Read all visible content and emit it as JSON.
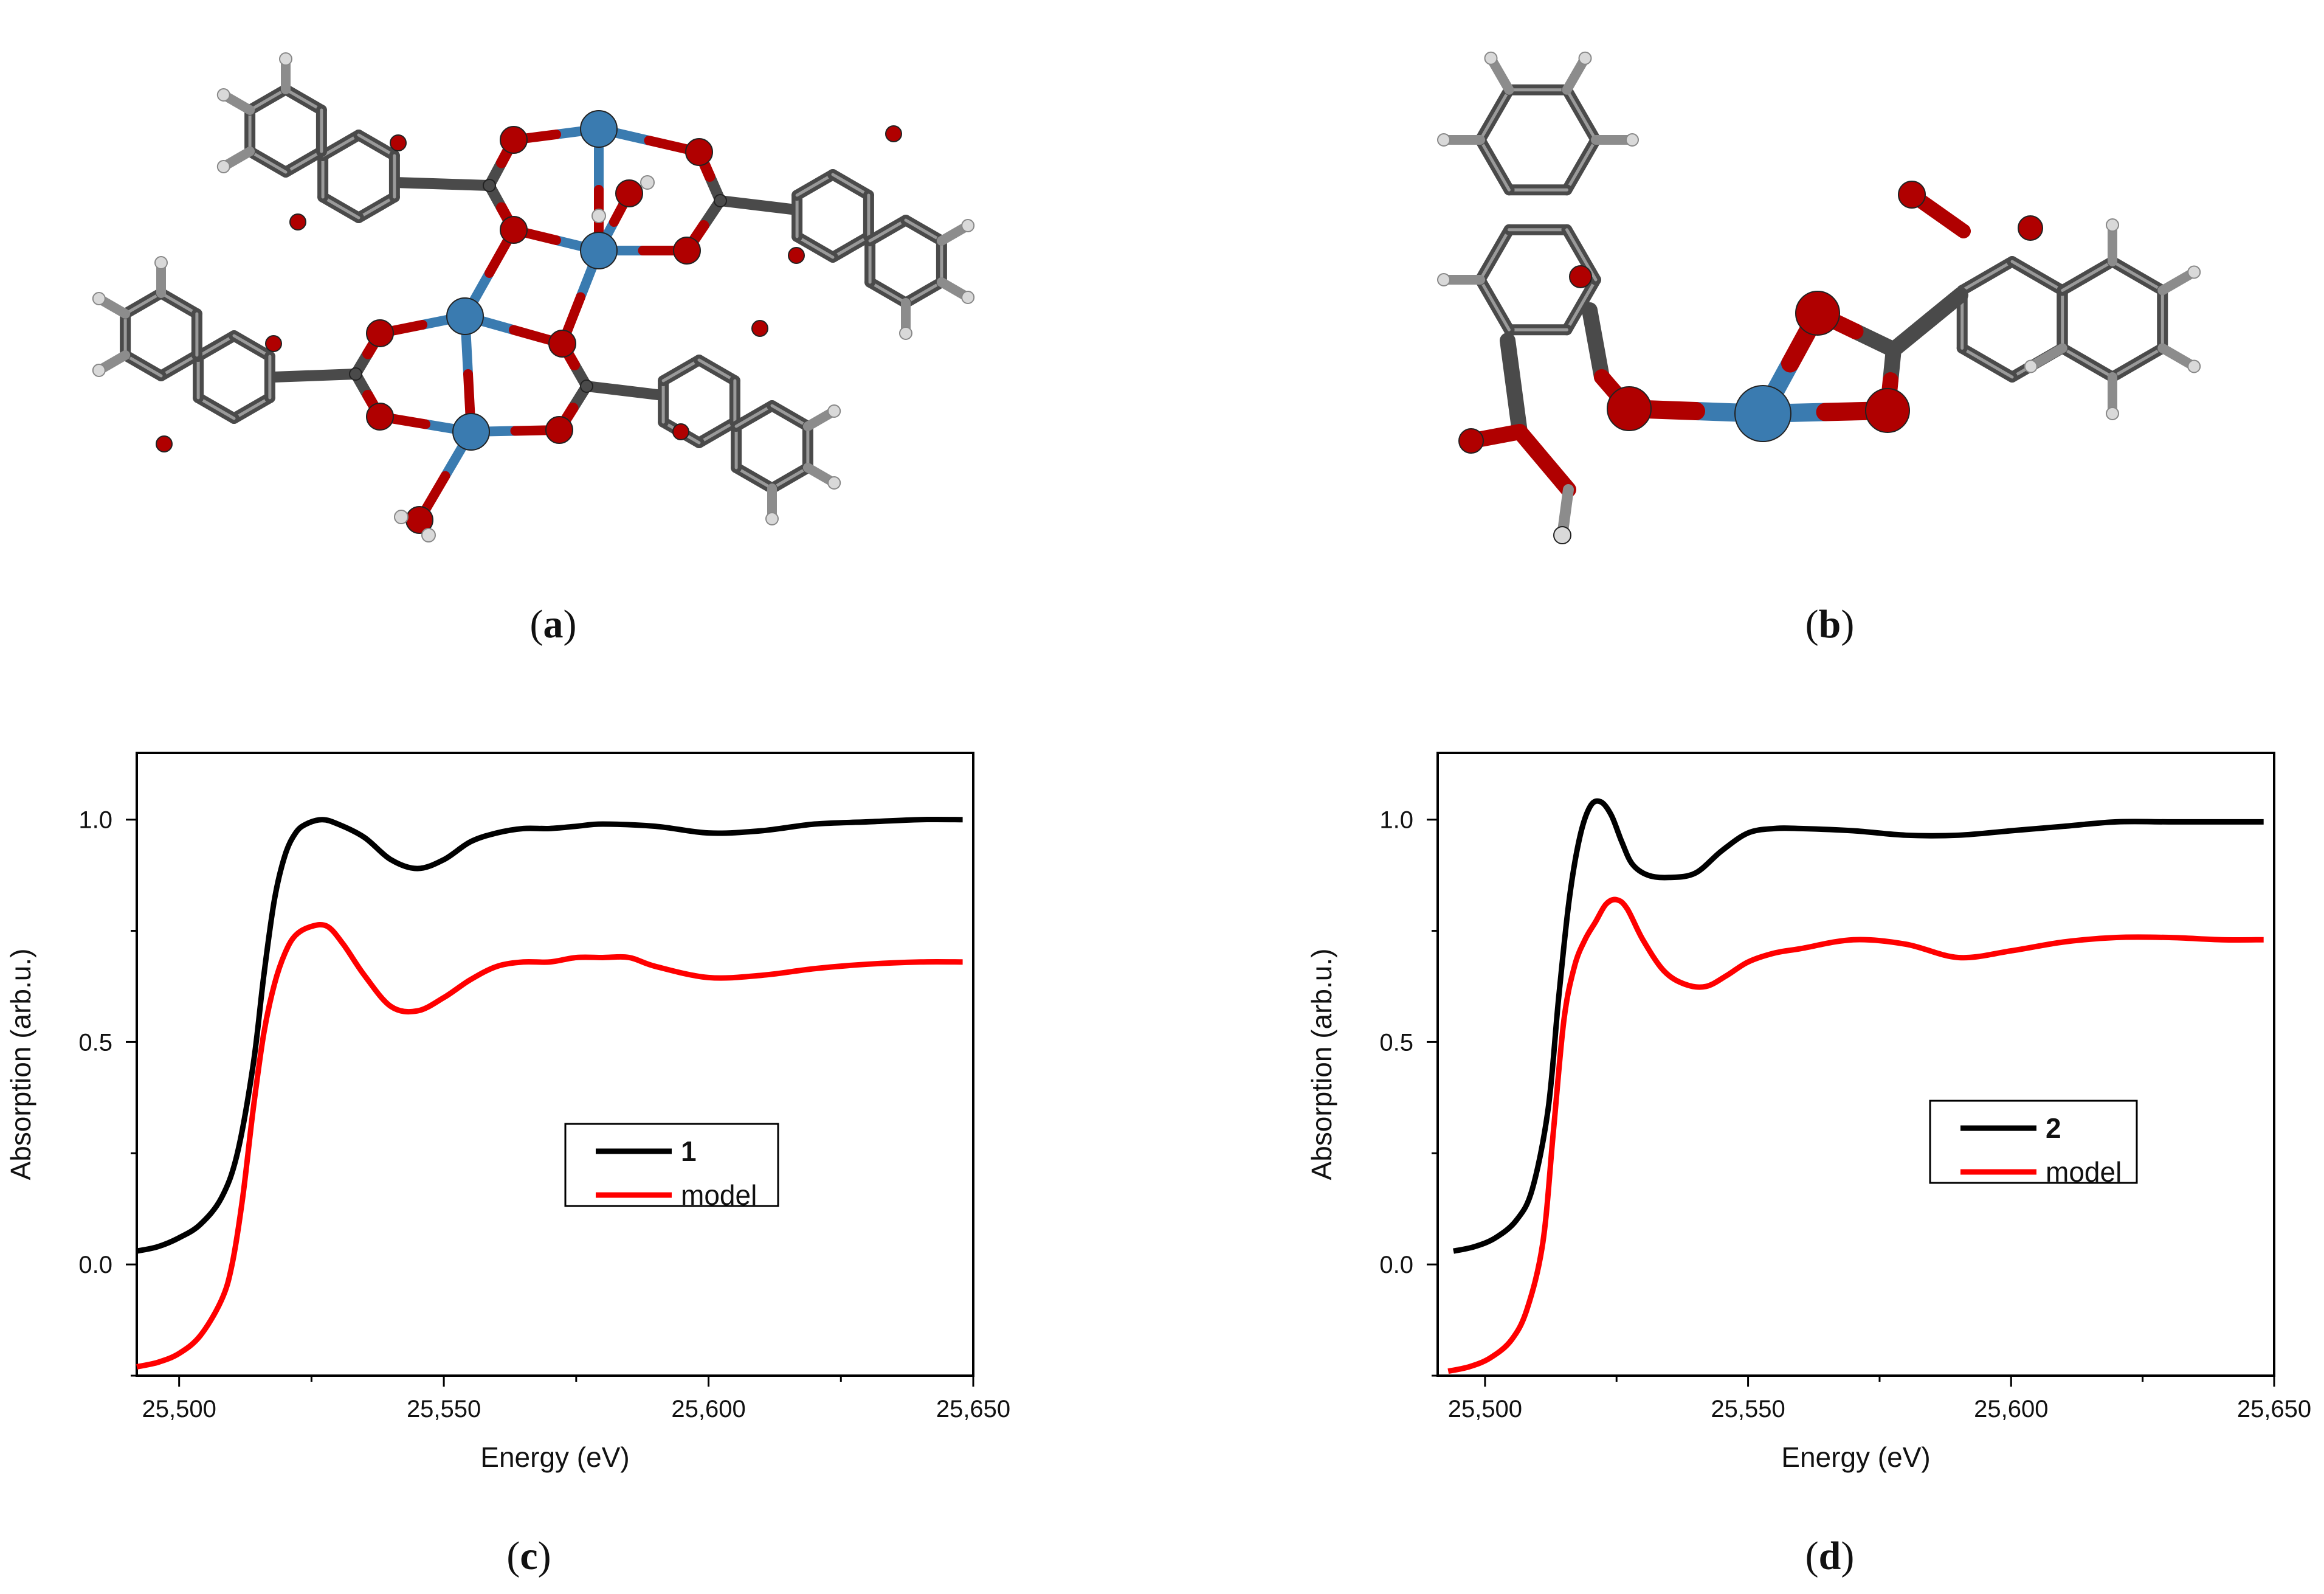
{
  "panel_labels": {
    "a": {
      "open": "(",
      "letter": "a",
      "close": ")"
    },
    "b": {
      "open": "(",
      "letter": "b",
      "close": ")"
    },
    "c": {
      "open": "(",
      "letter": "c",
      "close": ")"
    },
    "d": {
      "open": "(",
      "letter": "d",
      "close": ")"
    }
  },
  "molecule_a": {
    "description_icon": "ball-and-stick-tetranuclear-complex",
    "atom_colors": {
      "carbon": "#4a4a4a",
      "oxygen": "#b00000",
      "metal": "#3a7bb0",
      "hydrogen": "#d9d9d9"
    }
  },
  "molecule_b": {
    "description_icon": "ball-and-stick-mononuclear-fragment"
  },
  "chart_data": [
    {
      "type": "line",
      "panel": "c",
      "xlabel": "Energy (eV)",
      "ylabel": "Absorption (arb.u.)",
      "xlim": [
        25492,
        25650
      ],
      "ylim": [
        -0.25,
        1.15
      ],
      "xticks": [
        25500,
        25550,
        25600,
        25650
      ],
      "xtick_labels": [
        "25,500",
        "25,550",
        "25,600",
        "25,650"
      ],
      "yticks": [
        0.0,
        0.5,
        1.0
      ],
      "ytick_labels": [
        "0.0",
        "0.5",
        "1.0"
      ],
      "legend": {
        "placement": "center-right",
        "entries": [
          "1",
          "model"
        ]
      },
      "series": [
        {
          "name": "1",
          "color": "#000000",
          "x": [
            25492,
            25496,
            25500,
            25504,
            25508,
            25511,
            25514,
            25516,
            25518,
            25520,
            25522,
            25524,
            25527,
            25530,
            25535,
            25540,
            25545,
            25550,
            25555,
            25560,
            25565,
            25570,
            25575,
            25580,
            25590,
            25600,
            25610,
            25620,
            25630,
            25640,
            25648
          ],
          "y": [
            0.03,
            0.04,
            0.06,
            0.09,
            0.15,
            0.25,
            0.45,
            0.65,
            0.82,
            0.92,
            0.97,
            0.99,
            1.0,
            0.99,
            0.96,
            0.91,
            0.89,
            0.91,
            0.95,
            0.97,
            0.98,
            0.98,
            0.985,
            0.99,
            0.985,
            0.97,
            0.975,
            0.99,
            0.995,
            1.0,
            1.0
          ]
        },
        {
          "name": "model",
          "color": "#ff0000",
          "x": [
            25492,
            25496,
            25500,
            25504,
            25508,
            25510,
            25512,
            25514,
            25516,
            25518,
            25520,
            25522,
            25525,
            25528,
            25531,
            25535,
            25540,
            25545,
            25550,
            25555,
            25560,
            25565,
            25570,
            25575,
            25580,
            25585,
            25590,
            25600,
            25610,
            25620,
            25630,
            25640,
            25648
          ],
          "y": [
            -0.23,
            -0.22,
            -0.2,
            -0.16,
            -0.08,
            0.0,
            0.15,
            0.35,
            0.52,
            0.63,
            0.7,
            0.74,
            0.76,
            0.76,
            0.72,
            0.65,
            0.58,
            0.57,
            0.6,
            0.64,
            0.67,
            0.68,
            0.68,
            0.69,
            0.69,
            0.69,
            0.67,
            0.645,
            0.65,
            0.665,
            0.675,
            0.68,
            0.68
          ]
        }
      ]
    },
    {
      "type": "line",
      "panel": "d",
      "xlabel": "Energy (eV)",
      "ylabel": "Absorption (arb.u.)",
      "xlim": [
        25491,
        25650
      ],
      "ylim": [
        -0.25,
        1.15
      ],
      "xticks": [
        25500,
        25550,
        25600,
        25650
      ],
      "xtick_labels": [
        "25,500",
        "25,550",
        "25,600",
        "25,650"
      ],
      "yticks": [
        0.0,
        0.5,
        1.0
      ],
      "ytick_labels": [
        "0.0",
        "0.5",
        "1.0"
      ],
      "legend": {
        "placement": "center-right",
        "entries": [
          "2",
          "model"
        ]
      },
      "series": [
        {
          "name": "2",
          "color": "#000000",
          "x": [
            25494,
            25498,
            25502,
            25506,
            25509,
            25512,
            25514,
            25516,
            25518,
            25520,
            25522,
            25524,
            25526,
            25528,
            25531,
            25535,
            25540,
            25545,
            25550,
            25555,
            25560,
            25570,
            25580,
            25590,
            25600,
            25610,
            25620,
            25630,
            25640,
            25648
          ],
          "y": [
            0.03,
            0.04,
            0.06,
            0.1,
            0.17,
            0.35,
            0.6,
            0.82,
            0.96,
            1.03,
            1.04,
            1.01,
            0.95,
            0.9,
            0.875,
            0.87,
            0.88,
            0.93,
            0.97,
            0.98,
            0.98,
            0.975,
            0.965,
            0.965,
            0.975,
            0.985,
            0.995,
            0.995,
            0.995,
            0.995
          ]
        },
        {
          "name": "model",
          "color": "#ff0000",
          "x": [
            25493,
            25497,
            25501,
            25505,
            25508,
            25511,
            25513,
            25515,
            25517,
            25519,
            25521,
            25523,
            25525,
            25527,
            25530,
            25534,
            25538,
            25542,
            25546,
            25550,
            25555,
            25560,
            25570,
            25580,
            25590,
            25600,
            25610,
            25620,
            25630,
            25640,
            25648
          ],
          "y": [
            -0.24,
            -0.23,
            -0.21,
            -0.17,
            -0.1,
            0.05,
            0.3,
            0.55,
            0.67,
            0.73,
            0.77,
            0.81,
            0.82,
            0.8,
            0.73,
            0.66,
            0.63,
            0.625,
            0.65,
            0.68,
            0.7,
            0.71,
            0.73,
            0.72,
            0.69,
            0.705,
            0.725,
            0.735,
            0.735,
            0.73,
            0.73
          ]
        }
      ]
    }
  ]
}
